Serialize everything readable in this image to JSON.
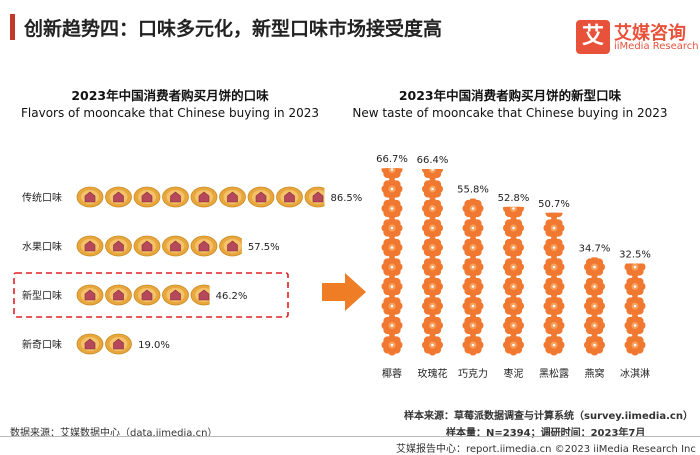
{
  "header": {
    "title": "创新趋势四：口味多元化，新型口味市场接受度高",
    "logo_mark": "艾",
    "logo_cn": "艾媒咨询",
    "logo_en": "iiMedia Research"
  },
  "left_panel": {
    "title_cn": "2023年中国消费者购买月饼的口味",
    "title_en": "Flavors of mooncake that Chinese buying in 2023"
  },
  "right_panel": {
    "title_cn": "2023年中国消费者购买月饼的新型口味",
    "title_en": "New taste of mooncake that Chinese buying in 2023"
  },
  "footer": {
    "source_left": "数据来源：艾媒数据中心（data.iimedia.cn）",
    "sample_source": "样本来源：草莓派数据调查与计算系统（survey.iimedia.cn）",
    "sample_size": "样本量：N=2394；调研时间：2023年7月",
    "copyright": "艾媒报告中心：report.iimedia.cn  ©2023  iiMedia Research  Inc"
  },
  "colors": {
    "title_accent": "#c0392b",
    "mooncake_gold": "#e8a73c",
    "flower_orange": "#f07830",
    "arrow_orange": "#ef7d26",
    "highlight_red": "#e02020"
  },
  "chart_data": [
    {
      "type": "bar",
      "orientation": "horizontal",
      "style": "pictogram",
      "icon": "mooncake-icon",
      "categories": [
        "传统口味",
        "水果口味",
        "新型口味",
        "新奇口味"
      ],
      "values": [
        86.5,
        57.5,
        46.2,
        19.0
      ],
      "value_labels": [
        "86.5%",
        "57.5%",
        "46.2%",
        "19.0%"
      ],
      "highlighted": "新型口味",
      "xlim": [
        0,
        100
      ]
    },
    {
      "type": "bar",
      "orientation": "vertical",
      "style": "pictogram",
      "icon": "flower-icon",
      "categories": [
        "椰蓉",
        "玫瑰花",
        "巧克力",
        "枣泥",
        "黑松露",
        "燕窝",
        "冰淇淋"
      ],
      "values": [
        66.7,
        66.4,
        55.8,
        52.8,
        50.7,
        34.7,
        32.5
      ],
      "value_labels": [
        "66.7%",
        "66.4%",
        "55.8%",
        "52.8%",
        "50.7%",
        "34.7%",
        "32.5%"
      ],
      "ylim": [
        0,
        70
      ]
    }
  ]
}
